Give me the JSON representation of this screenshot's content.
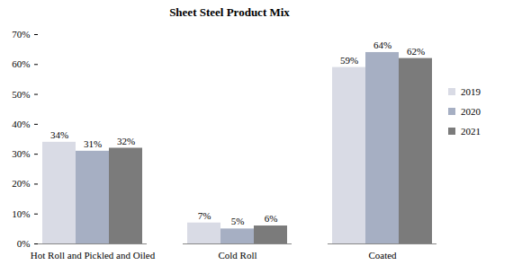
{
  "chart_data": {
    "type": "bar",
    "title": "Sheet Steel Product Mix",
    "categories": [
      "Hot Roll and Pickled and Oiled",
      "Cold Roll",
      "Coated"
    ],
    "series": [
      {
        "name": "2019",
        "color": "#d9dbe5",
        "values": [
          34,
          7,
          59
        ],
        "value_labels": [
          "34%",
          "7%",
          "59%"
        ]
      },
      {
        "name": "2020",
        "color": "#a6afc3",
        "values": [
          31,
          5,
          64
        ],
        "value_labels": [
          "31%",
          "5%",
          "64%"
        ]
      },
      {
        "name": "2021",
        "color": "#7b7b7b",
        "values": [
          32,
          6,
          62
        ],
        "value_labels": [
          "32%",
          "6%",
          "62%"
        ]
      }
    ],
    "ylim": [
      0,
      70
    ],
    "yticks": [
      {
        "value": 0,
        "label": "0%"
      },
      {
        "value": 10,
        "label": "10%"
      },
      {
        "value": 20,
        "label": "20%"
      },
      {
        "value": 30,
        "label": "30%"
      },
      {
        "value": 40,
        "label": "40%"
      },
      {
        "value": 50,
        "label": "50%"
      },
      {
        "value": 60,
        "label": "60%"
      },
      {
        "value": 70,
        "label": "70%"
      }
    ],
    "grid": false,
    "legend": "right",
    "data_labels": true
  }
}
